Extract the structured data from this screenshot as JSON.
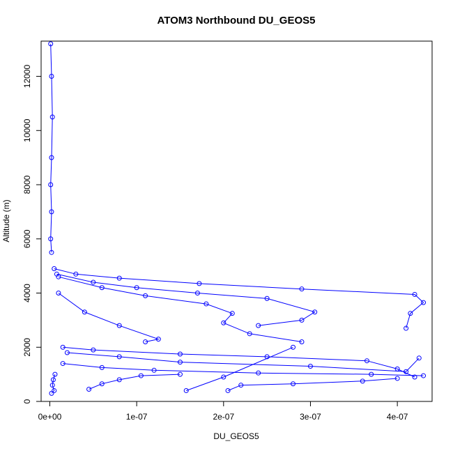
{
  "chart_data": {
    "type": "scatter",
    "title": "ATOM3 Northbound DU_GEOS5",
    "xlabel": "DU_GEOS5",
    "ylabel": "Altitude (m)",
    "xlim": [
      -1e-08,
      4.4e-07
    ],
    "ylim": [
      0,
      13300
    ],
    "x_ticks": [
      {
        "value": 0,
        "label": "0e+00"
      },
      {
        "value": 1e-07,
        "label": "1e-07"
      },
      {
        "value": 2e-07,
        "label": "2e-07"
      },
      {
        "value": 3e-07,
        "label": "3e-07"
      },
      {
        "value": 4e-07,
        "label": "4e-07"
      }
    ],
    "y_ticks": [
      {
        "value": 0,
        "label": "0"
      },
      {
        "value": 2000,
        "label": "2000"
      },
      {
        "value": 4000,
        "label": "4000"
      },
      {
        "value": 6000,
        "label": "6000"
      },
      {
        "value": 8000,
        "label": "8000"
      },
      {
        "value": 10000,
        "label": "10000"
      },
      {
        "value": 12000,
        "label": "12000"
      }
    ],
    "grid": false,
    "legend": "none",
    "color": "#0000ff",
    "marker": "open-circle",
    "connected": true,
    "profiles": [
      {
        "x": [
          1e-09,
          2e-09,
          3e-09,
          2e-09,
          1e-09,
          2e-09,
          1e-09,
          2e-09
        ],
        "y": [
          13200,
          12000,
          10500,
          9000,
          8000,
          7000,
          6000,
          5500
        ]
      },
      {
        "x": [
          5e-09,
          3e-08,
          8e-08,
          1.72e-07,
          2.9e-07,
          4.2e-07,
          4.3e-07,
          4.15e-07,
          4.1e-07
        ],
        "y": [
          4900,
          4700,
          4550,
          4350,
          4150,
          3950,
          3650,
          3250,
          2700
        ]
      },
      {
        "x": [
          8e-09,
          5e-08,
          1e-07,
          1.7e-07,
          2.5e-07,
          3.05e-07,
          2.9e-07,
          2.4e-07
        ],
        "y": [
          4700,
          4400,
          4200,
          4000,
          3800,
          3300,
          3000,
          2800
        ]
      },
      {
        "x": [
          1e-08,
          6e-08,
          1.1e-07,
          1.8e-07,
          2.1e-07,
          2e-07,
          2.3e-07,
          2.9e-07
        ],
        "y": [
          4600,
          4200,
          3900,
          3600,
          3250,
          2900,
          2500,
          2200
        ]
      },
      {
        "x": [
          1e-08,
          4e-08,
          8e-08,
          1.25e-07,
          1.1e-07
        ],
        "y": [
          4000,
          3300,
          2800,
          2300,
          2200
        ]
      },
      {
        "x": [
          1.5e-08,
          5e-08,
          1.5e-07,
          2.5e-07,
          3.65e-07,
          4e-07,
          4.2e-07
        ],
        "y": [
          2000,
          1900,
          1750,
          1650,
          1500,
          1200,
          900
        ]
      },
      {
        "x": [
          2e-08,
          8e-08,
          1.5e-07,
          3e-07,
          4.1e-07,
          4.25e-07
        ],
        "y": [
          1800,
          1650,
          1450,
          1300,
          1100,
          1600
        ]
      },
      {
        "x": [
          1.5e-08,
          6e-08,
          1.2e-07,
          2.4e-07,
          3.7e-07,
          4.3e-07
        ],
        "y": [
          1400,
          1250,
          1150,
          1050,
          1000,
          950
        ]
      },
      {
        "x": [
          4.5e-08,
          6e-08,
          8e-08,
          1.05e-07,
          1.5e-07
        ],
        "y": [
          450,
          650,
          800,
          950,
          1000
        ]
      },
      {
        "x": [
          1.57e-07,
          2e-07,
          2.8e-07
        ],
        "y": [
          400,
          900,
          2000
        ]
      },
      {
        "x": [
          2.05e-07,
          2.2e-07,
          2.8e-07,
          3.6e-07,
          4e-07
        ],
        "y": [
          400,
          600,
          650,
          750,
          850
        ]
      },
      {
        "x": [
          6e-09,
          4e-09,
          3e-09,
          5e-09,
          2e-09
        ],
        "y": [
          1000,
          800,
          600,
          400,
          300
        ]
      }
    ]
  }
}
